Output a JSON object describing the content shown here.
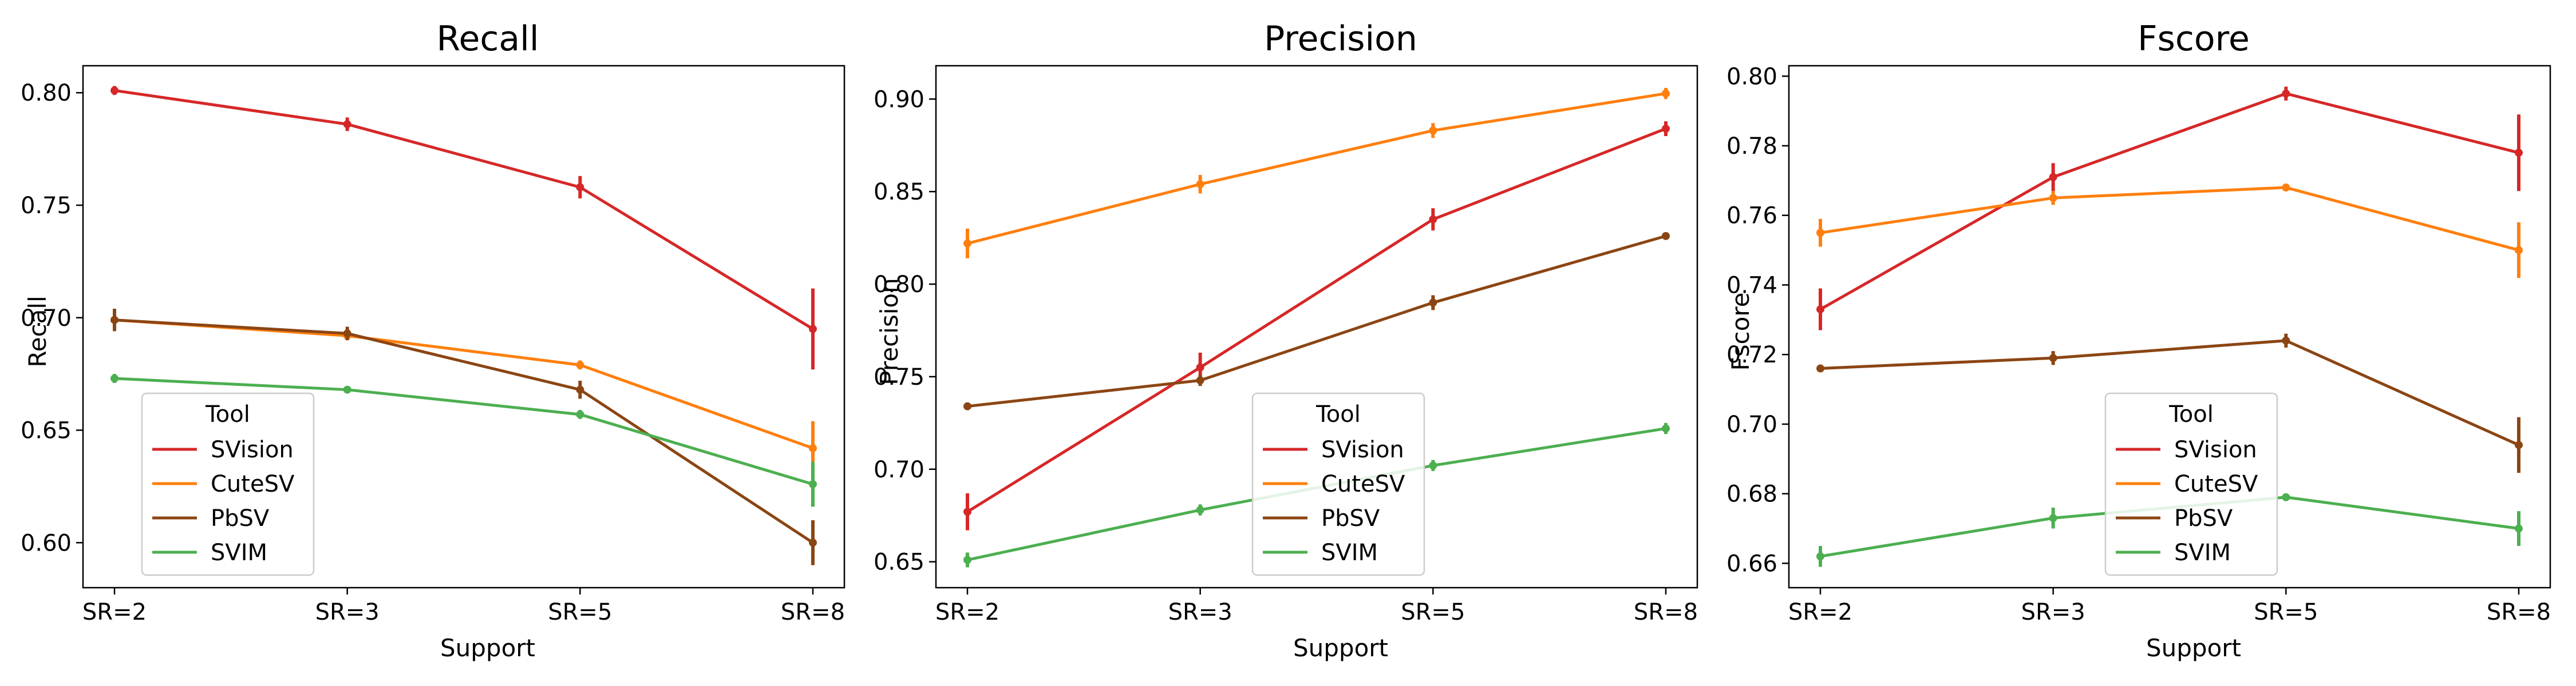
{
  "chart_data": [
    {
      "type": "line",
      "title": "Recall",
      "xlabel": "Support",
      "ylabel": "Recall",
      "categories": [
        "SR=2",
        "SR=3",
        "SR=5",
        "SR=8"
      ],
      "ylim": [
        0.58,
        0.812
      ],
      "yticks": [
        "0.60",
        "0.65",
        "0.70",
        "0.75",
        "0.80"
      ],
      "legend": {
        "title": "Tool",
        "placement": "lower-left"
      },
      "series": [
        {
          "name": "SVision",
          "color": "#d62728",
          "values": [
            0.801,
            0.786,
            0.758,
            0.695
          ],
          "err": [
            0.002,
            0.003,
            0.005,
            0.018
          ]
        },
        {
          "name": "CuteSV",
          "color": "#ff7f0e",
          "values": [
            0.699,
            0.692,
            0.679,
            0.642
          ],
          "err": [
            0.003,
            0.002,
            0.002,
            0.012
          ]
        },
        {
          "name": "PbSV",
          "color": "#8b4513",
          "values": [
            0.699,
            0.693,
            0.668,
            0.6
          ],
          "err": [
            0.005,
            0.003,
            0.004,
            0.01
          ]
        },
        {
          "name": "SVIM",
          "color": "#4caf50",
          "values": [
            0.673,
            0.668,
            0.657,
            0.626
          ],
          "err": [
            0.002,
            0.001,
            0.002,
            0.01
          ]
        }
      ]
    },
    {
      "type": "line",
      "title": "Precision",
      "xlabel": "Support",
      "ylabel": "Precision",
      "categories": [
        "SR=2",
        "SR=3",
        "SR=5",
        "SR=8"
      ],
      "ylim": [
        0.636,
        0.918
      ],
      "yticks": [
        "0.65",
        "0.70",
        "0.75",
        "0.80",
        "0.85",
        "0.90"
      ],
      "legend": {
        "title": "Tool",
        "placement": "lower-center"
      },
      "series": [
        {
          "name": "SVision",
          "color": "#d62728",
          "values": [
            0.677,
            0.755,
            0.835,
            0.884
          ],
          "err": [
            0.01,
            0.008,
            0.006,
            0.004
          ]
        },
        {
          "name": "CuteSV",
          "color": "#ff7f0e",
          "values": [
            0.822,
            0.854,
            0.883,
            0.903
          ],
          "err": [
            0.008,
            0.005,
            0.004,
            0.003
          ]
        },
        {
          "name": "PbSV",
          "color": "#8b4513",
          "values": [
            0.734,
            0.748,
            0.79,
            0.826
          ],
          "err": [
            0.002,
            0.003,
            0.004,
            0.002
          ]
        },
        {
          "name": "SVIM",
          "color": "#4caf50",
          "values": [
            0.651,
            0.678,
            0.702,
            0.722
          ],
          "err": [
            0.004,
            0.003,
            0.003,
            0.003
          ]
        }
      ]
    },
    {
      "type": "line",
      "title": "Fscore",
      "xlabel": "Support",
      "ylabel": "Fscore",
      "categories": [
        "SR=2",
        "SR=3",
        "SR=5",
        "SR=8"
      ],
      "ylim": [
        0.653,
        0.803
      ],
      "yticks": [
        "0.66",
        "0.68",
        "0.70",
        "0.72",
        "0.74",
        "0.76",
        "0.78",
        "0.80"
      ],
      "legend": {
        "title": "Tool",
        "placement": "lower-center"
      },
      "series": [
        {
          "name": "SVision",
          "color": "#d62728",
          "values": [
            0.733,
            0.771,
            0.795,
            0.778
          ],
          "err": [
            0.006,
            0.004,
            0.002,
            0.011
          ]
        },
        {
          "name": "CuteSV",
          "color": "#ff7f0e",
          "values": [
            0.755,
            0.765,
            0.768,
            0.75
          ],
          "err": [
            0.004,
            0.002,
            0.001,
            0.008
          ]
        },
        {
          "name": "PbSV",
          "color": "#8b4513",
          "values": [
            0.716,
            0.719,
            0.724,
            0.694
          ],
          "err": [
            0.001,
            0.002,
            0.002,
            0.008
          ]
        },
        {
          "name": "SVIM",
          "color": "#4caf50",
          "values": [
            0.662,
            0.673,
            0.679,
            0.67
          ],
          "err": [
            0.003,
            0.003,
            0.001,
            0.005
          ]
        }
      ]
    }
  ]
}
